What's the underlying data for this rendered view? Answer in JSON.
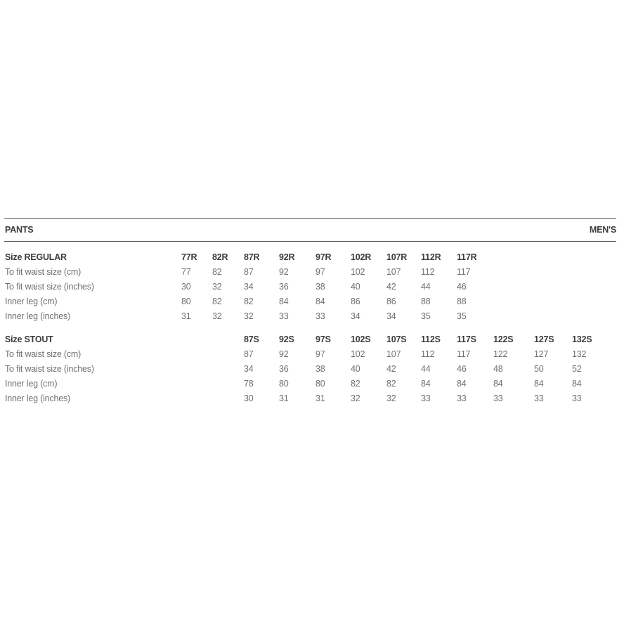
{
  "header": {
    "title": "PANTS",
    "category": "MEN'S"
  },
  "sections": [
    {
      "name": "regular",
      "label": "Size REGULAR",
      "sizes": [
        "77R",
        "82R",
        "87R",
        "92R",
        "97R",
        "102R",
        "107R",
        "112R",
        "117R"
      ],
      "rows": [
        {
          "label": "To fit waist size (cm)",
          "values": [
            "77",
            "82",
            "87",
            "92",
            "97",
            "102",
            "107",
            "112",
            "117"
          ]
        },
        {
          "label": "To fit waist size (inches)",
          "values": [
            "30",
            "32",
            "34",
            "36",
            "38",
            "40",
            "42",
            "44",
            "46"
          ]
        },
        {
          "label": "Inner leg (cm)",
          "values": [
            "80",
            "82",
            "82",
            "84",
            "84",
            "86",
            "86",
            "88",
            "88"
          ]
        },
        {
          "label": "Inner leg (inches)",
          "values": [
            "31",
            "32",
            "32",
            "33",
            "33",
            "34",
            "34",
            "35",
            "35"
          ]
        }
      ]
    },
    {
      "name": "stout",
      "label": "Size STOUT",
      "sizes": [
        "87S",
        "92S",
        "97S",
        "102S",
        "107S",
        "112S",
        "117S",
        "122S",
        "127S",
        "132S"
      ],
      "rows": [
        {
          "label": "To fit waist size (cm)",
          "values": [
            "87",
            "92",
            "97",
            "102",
            "107",
            "112",
            "117",
            "122",
            "127",
            "132"
          ]
        },
        {
          "label": "To fit waist size (inches)",
          "values": [
            "34",
            "36",
            "38",
            "40",
            "42",
            "44",
            "46",
            "48",
            "50",
            "52"
          ]
        },
        {
          "label": "Inner leg (cm)",
          "values": [
            "78",
            "80",
            "80",
            "82",
            "82",
            "84",
            "84",
            "84",
            "84",
            "84"
          ]
        },
        {
          "label": "Inner leg (inches)",
          "values": [
            "30",
            "31",
            "31",
            "32",
            "32",
            "33",
            "33",
            "33",
            "33",
            "33"
          ]
        }
      ]
    }
  ]
}
